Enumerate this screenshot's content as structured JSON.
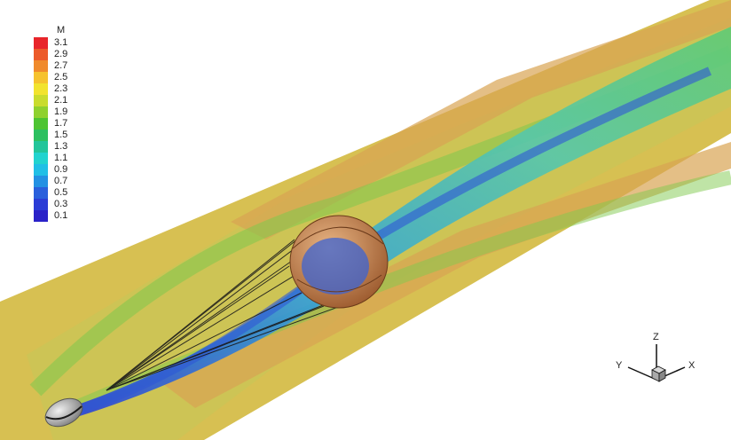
{
  "legend": {
    "title": "M",
    "entries": [
      {
        "label": "3.1",
        "color": "#e8252a"
      },
      {
        "label": "2.9",
        "color": "#ec5a2a"
      },
      {
        "label": "2.7",
        "color": "#f08a2c"
      },
      {
        "label": "2.5",
        "color": "#f6c22e"
      },
      {
        "label": "2.3",
        "color": "#f2e32e"
      },
      {
        "label": "2.1",
        "color": "#c9dc2e"
      },
      {
        "label": "1.9",
        "color": "#8fd12f"
      },
      {
        "label": "1.7",
        "color": "#4ec432"
      },
      {
        "label": "1.5",
        "color": "#2cc060"
      },
      {
        "label": "1.3",
        "color": "#22c59a"
      },
      {
        "label": "1.1",
        "color": "#21d3cf"
      },
      {
        "label": "0.9",
        "color": "#20bfe6"
      },
      {
        "label": "0.7",
        "color": "#2391e3"
      },
      {
        "label": "0.5",
        "color": "#2a60dc"
      },
      {
        "label": "0.3",
        "color": "#2b3dd6"
      },
      {
        "label": "0.1",
        "color": "#2a22c8"
      }
    ]
  },
  "axes": {
    "x": "X",
    "y": "Y",
    "z": "Z"
  },
  "colors": {
    "freestream": "#d6bf52",
    "bow_shock_layer": "#c9c556",
    "hot_band": "#d8a553",
    "wake_green": "#57c66a",
    "wake_cyan": "#53c9b5",
    "wake_blue": "#3c74d8",
    "canopy": "#c98a57",
    "capsule": "#b8b8b8"
  }
}
